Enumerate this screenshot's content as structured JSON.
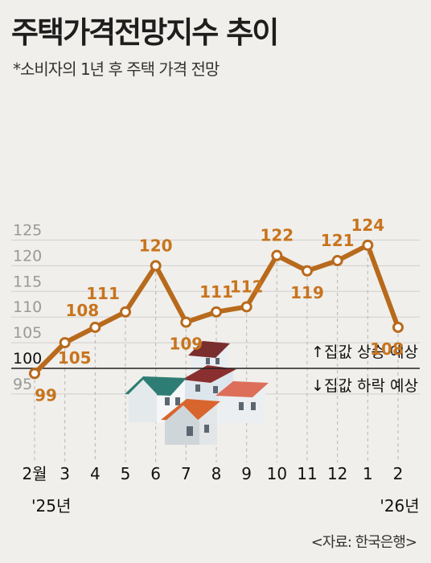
{
  "title": "주택가격전망지수 추이",
  "subtitle": "*소비자의 1년 후 주택 가격 전망",
  "source": "<자료: 한국은행>",
  "colors": {
    "line": "#b86a1c",
    "label": "#c8741e",
    "grid": "#cfcfcf",
    "baseline": "#222222",
    "background": "#f0efeb"
  },
  "icons": [
    "houses-illustration"
  ],
  "chart_data": {
    "type": "line",
    "title": "주택가격전망지수 추이",
    "subtitle": "*소비자의 1년 후 주택 가격 전망",
    "categories": [
      "2월",
      "3",
      "4",
      "5",
      "6",
      "7",
      "8",
      "9",
      "10",
      "11",
      "12",
      "1",
      "2"
    ],
    "year_labels": [
      {
        "index": 0,
        "text": "'25년"
      },
      {
        "index": 11,
        "text": "'26년"
      }
    ],
    "series": [
      {
        "values": [
          99,
          105,
          108,
          111,
          120,
          109,
          111,
          112,
          122,
          119,
          121,
          124,
          108
        ]
      }
    ],
    "yticks": [
      95,
      100,
      105,
      110,
      115,
      120,
      125
    ],
    "ylim": [
      92,
      127
    ],
    "reference_line": 100,
    "annotations": {
      "above": "↑집값 상승 예상",
      "below": "↓집값 하락 예상"
    },
    "grid": true
  }
}
